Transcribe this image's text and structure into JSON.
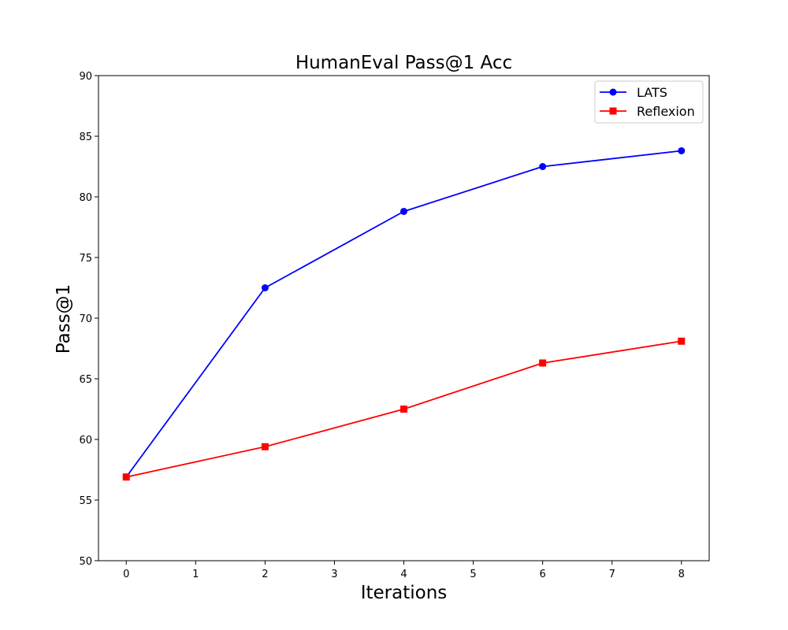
{
  "chart_data": {
    "type": "line",
    "title": "HumanEval Pass@1 Acc",
    "xlabel": "Iterations",
    "ylabel": "Pass@1",
    "xlim": [
      -0.4,
      8.4
    ],
    "ylim": [
      50,
      90
    ],
    "xticks": [
      0,
      1,
      2,
      3,
      4,
      5,
      6,
      7,
      8
    ],
    "yticks": [
      50,
      55,
      60,
      65,
      70,
      75,
      80,
      85,
      90
    ],
    "grid": false,
    "legend_position": "top-right",
    "series": [
      {
        "name": "LATS",
        "color": "#0000ff",
        "marker": "circle",
        "x": [
          0,
          2,
          4,
          6,
          8
        ],
        "y": [
          56.9,
          72.5,
          78.8,
          82.5,
          83.8
        ]
      },
      {
        "name": "Reflexion",
        "color": "#ff0000",
        "marker": "square",
        "x": [
          0,
          2,
          4,
          6,
          8
        ],
        "y": [
          56.9,
          59.4,
          62.5,
          66.3,
          68.1
        ]
      }
    ]
  }
}
